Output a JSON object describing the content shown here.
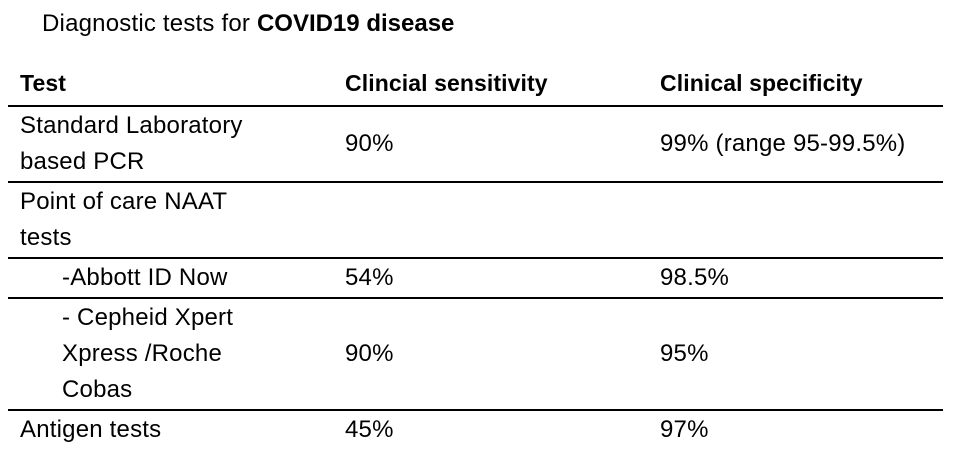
{
  "title": {
    "prefix": "Diagnostic tests for ",
    "bold_part": "COVID19 disease"
  },
  "table": {
    "columns": [
      {
        "label": "Test"
      },
      {
        "label": "Clincial sensitivity"
      },
      {
        "label": "Clinical specificity"
      }
    ],
    "rows": [
      {
        "test": "Standard Laboratory\nbased PCR",
        "sensitivity": "90%",
        "specificity": "99% (range 95-99.5%)",
        "indent": false
      },
      {
        "test": "Point of care NAAT\ntests",
        "sensitivity": "",
        "specificity": "",
        "indent": false
      },
      {
        "test": "-Abbott ID Now",
        "sensitivity": "54%",
        "specificity": "98.5%",
        "indent": true
      },
      {
        "test": "- Cepheid Xpert\nXpress /Roche\nCobas",
        "sensitivity": "90%",
        "specificity": "95%",
        "indent": true
      },
      {
        "test": "Antigen tests",
        "sensitivity": "45%",
        "specificity": "97%",
        "indent": false
      }
    ]
  },
  "chart_data": {
    "type": "table",
    "title": "Diagnostic tests for COVID19 disease",
    "columns": [
      "Test",
      "Clincial sensitivity",
      "Clinical specificity"
    ],
    "rows": [
      [
        "Standard Laboratory based PCR",
        "90%",
        "99% (range 95-99.5%)"
      ],
      [
        "Point of care NAAT tests",
        "",
        ""
      ],
      [
        "-Abbott ID Now",
        "54%",
        "98.5%"
      ],
      [
        "- Cepheid Xpert Xpress /Roche Cobas",
        "90%",
        "95%"
      ],
      [
        "Antigen tests",
        "45%",
        "97%"
      ]
    ],
    "layout_hints": {
      "grid": "horizontal-rules-only",
      "no_border_above_header": true,
      "no_border_below_last_row": true,
      "sub_rows_indented": [
        2,
        3
      ],
      "text_color": "#000000",
      "background": "#ffffff"
    }
  }
}
